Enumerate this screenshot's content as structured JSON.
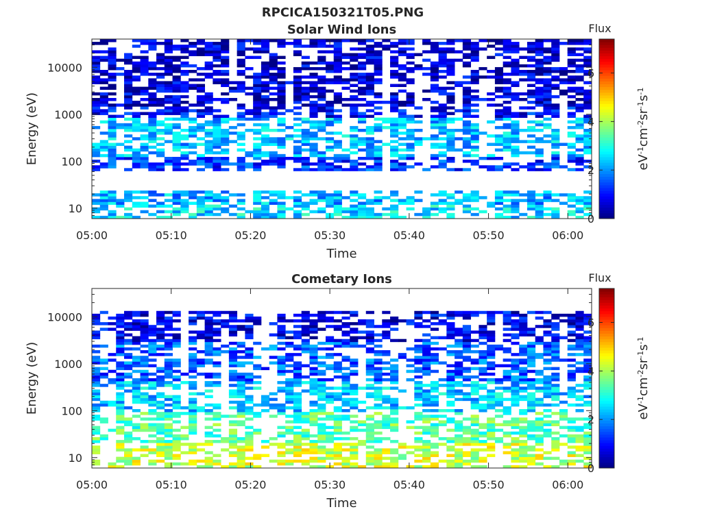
{
  "figure_title": "RPCICA150321T05.PNG",
  "chart_data": [
    {
      "type": "heatmap",
      "title": "Solar Wind Ions",
      "xlabel": "Time",
      "ylabel": "Energy (eV)",
      "x_ticks": [
        "05:00",
        "05:10",
        "05:20",
        "05:30",
        "05:40",
        "05:50",
        "06:00"
      ],
      "xlim": [
        "05:00",
        "06:03"
      ],
      "y_scale": "log",
      "y_ticks": [
        10,
        100,
        1000,
        10000
      ],
      "y_tick_labels": [
        "10",
        "100",
        "1000",
        "10000"
      ],
      "ylim": [
        6,
        40000
      ],
      "colorbar": {
        "title": "Flux",
        "label_html": "eV<tspan baseline-shift='super' font-size='11'>-1</tspan>cm<tspan baseline-shift='super' font-size='11'>-2</tspan>sr<tspan baseline-shift='super' font-size='11'>-1</tspan>s<tspan baseline-shift='super' font-size='11'>-1</tspan>",
        "label": "eV-1cm-2sr-1s-1",
        "range": [
          0,
          7.4
        ],
        "ticks": [
          0,
          2,
          4,
          6
        ],
        "tick_labels": [
          "0",
          "2",
          "4",
          "6"
        ],
        "colormap": "jet"
      },
      "intensity_profile": [
        {
          "energy_range": [
            6,
            12
          ],
          "flux_level": 2.6
        },
        {
          "energy_range": [
            12,
            25
          ],
          "flux_level": 2.2
        },
        {
          "energy_range": [
            25,
            60
          ],
          "flux_level": 0
        },
        {
          "energy_range": [
            60,
            120
          ],
          "flux_level": 1.3
        },
        {
          "energy_range": [
            120,
            800
          ],
          "flux_level": 2.3
        },
        {
          "energy_range": [
            800,
            1500
          ],
          "flux_level": 1.0
        },
        {
          "energy_range": [
            1500,
            40000
          ],
          "flux_level": 0.6
        }
      ]
    },
    {
      "type": "heatmap",
      "title": "Cometary Ions",
      "xlabel": "Time",
      "ylabel": "Energy (eV)",
      "x_ticks": [
        "05:00",
        "05:10",
        "05:20",
        "05:30",
        "05:40",
        "05:50",
        "06:00"
      ],
      "xlim": [
        "05:00",
        "06:03"
      ],
      "y_scale": "log",
      "y_ticks": [
        10,
        100,
        1000,
        10000
      ],
      "y_tick_labels": [
        "10",
        "100",
        "1000",
        "10000"
      ],
      "ylim": [
        6,
        40000
      ],
      "colorbar": {
        "title": "Flux",
        "label_html": "eV<tspan baseline-shift='super' font-size='11'>-1</tspan>cm<tspan baseline-shift='super' font-size='11'>-2</tspan>sr<tspan baseline-shift='super' font-size='11'>-1</tspan>s<tspan baseline-shift='super' font-size='11'>-1</tspan>",
        "label": "eV-1cm-2sr-1s-1",
        "range": [
          0,
          7.4
        ],
        "ticks": [
          0,
          2,
          4,
          6
        ],
        "tick_labels": [
          "0",
          "2",
          "4",
          "6"
        ],
        "colormap": "jet"
      },
      "intensity_profile": [
        {
          "energy_range": [
            6,
            20
          ],
          "flux_level": 4.2
        },
        {
          "energy_range": [
            20,
            90
          ],
          "flux_level": 3.4
        },
        {
          "energy_range": [
            90,
            400
          ],
          "flux_level": 2.4
        },
        {
          "energy_range": [
            400,
            3000
          ],
          "flux_level": 1.6
        },
        {
          "energy_range": [
            3000,
            14000
          ],
          "flux_level": 0.8
        }
      ]
    }
  ]
}
